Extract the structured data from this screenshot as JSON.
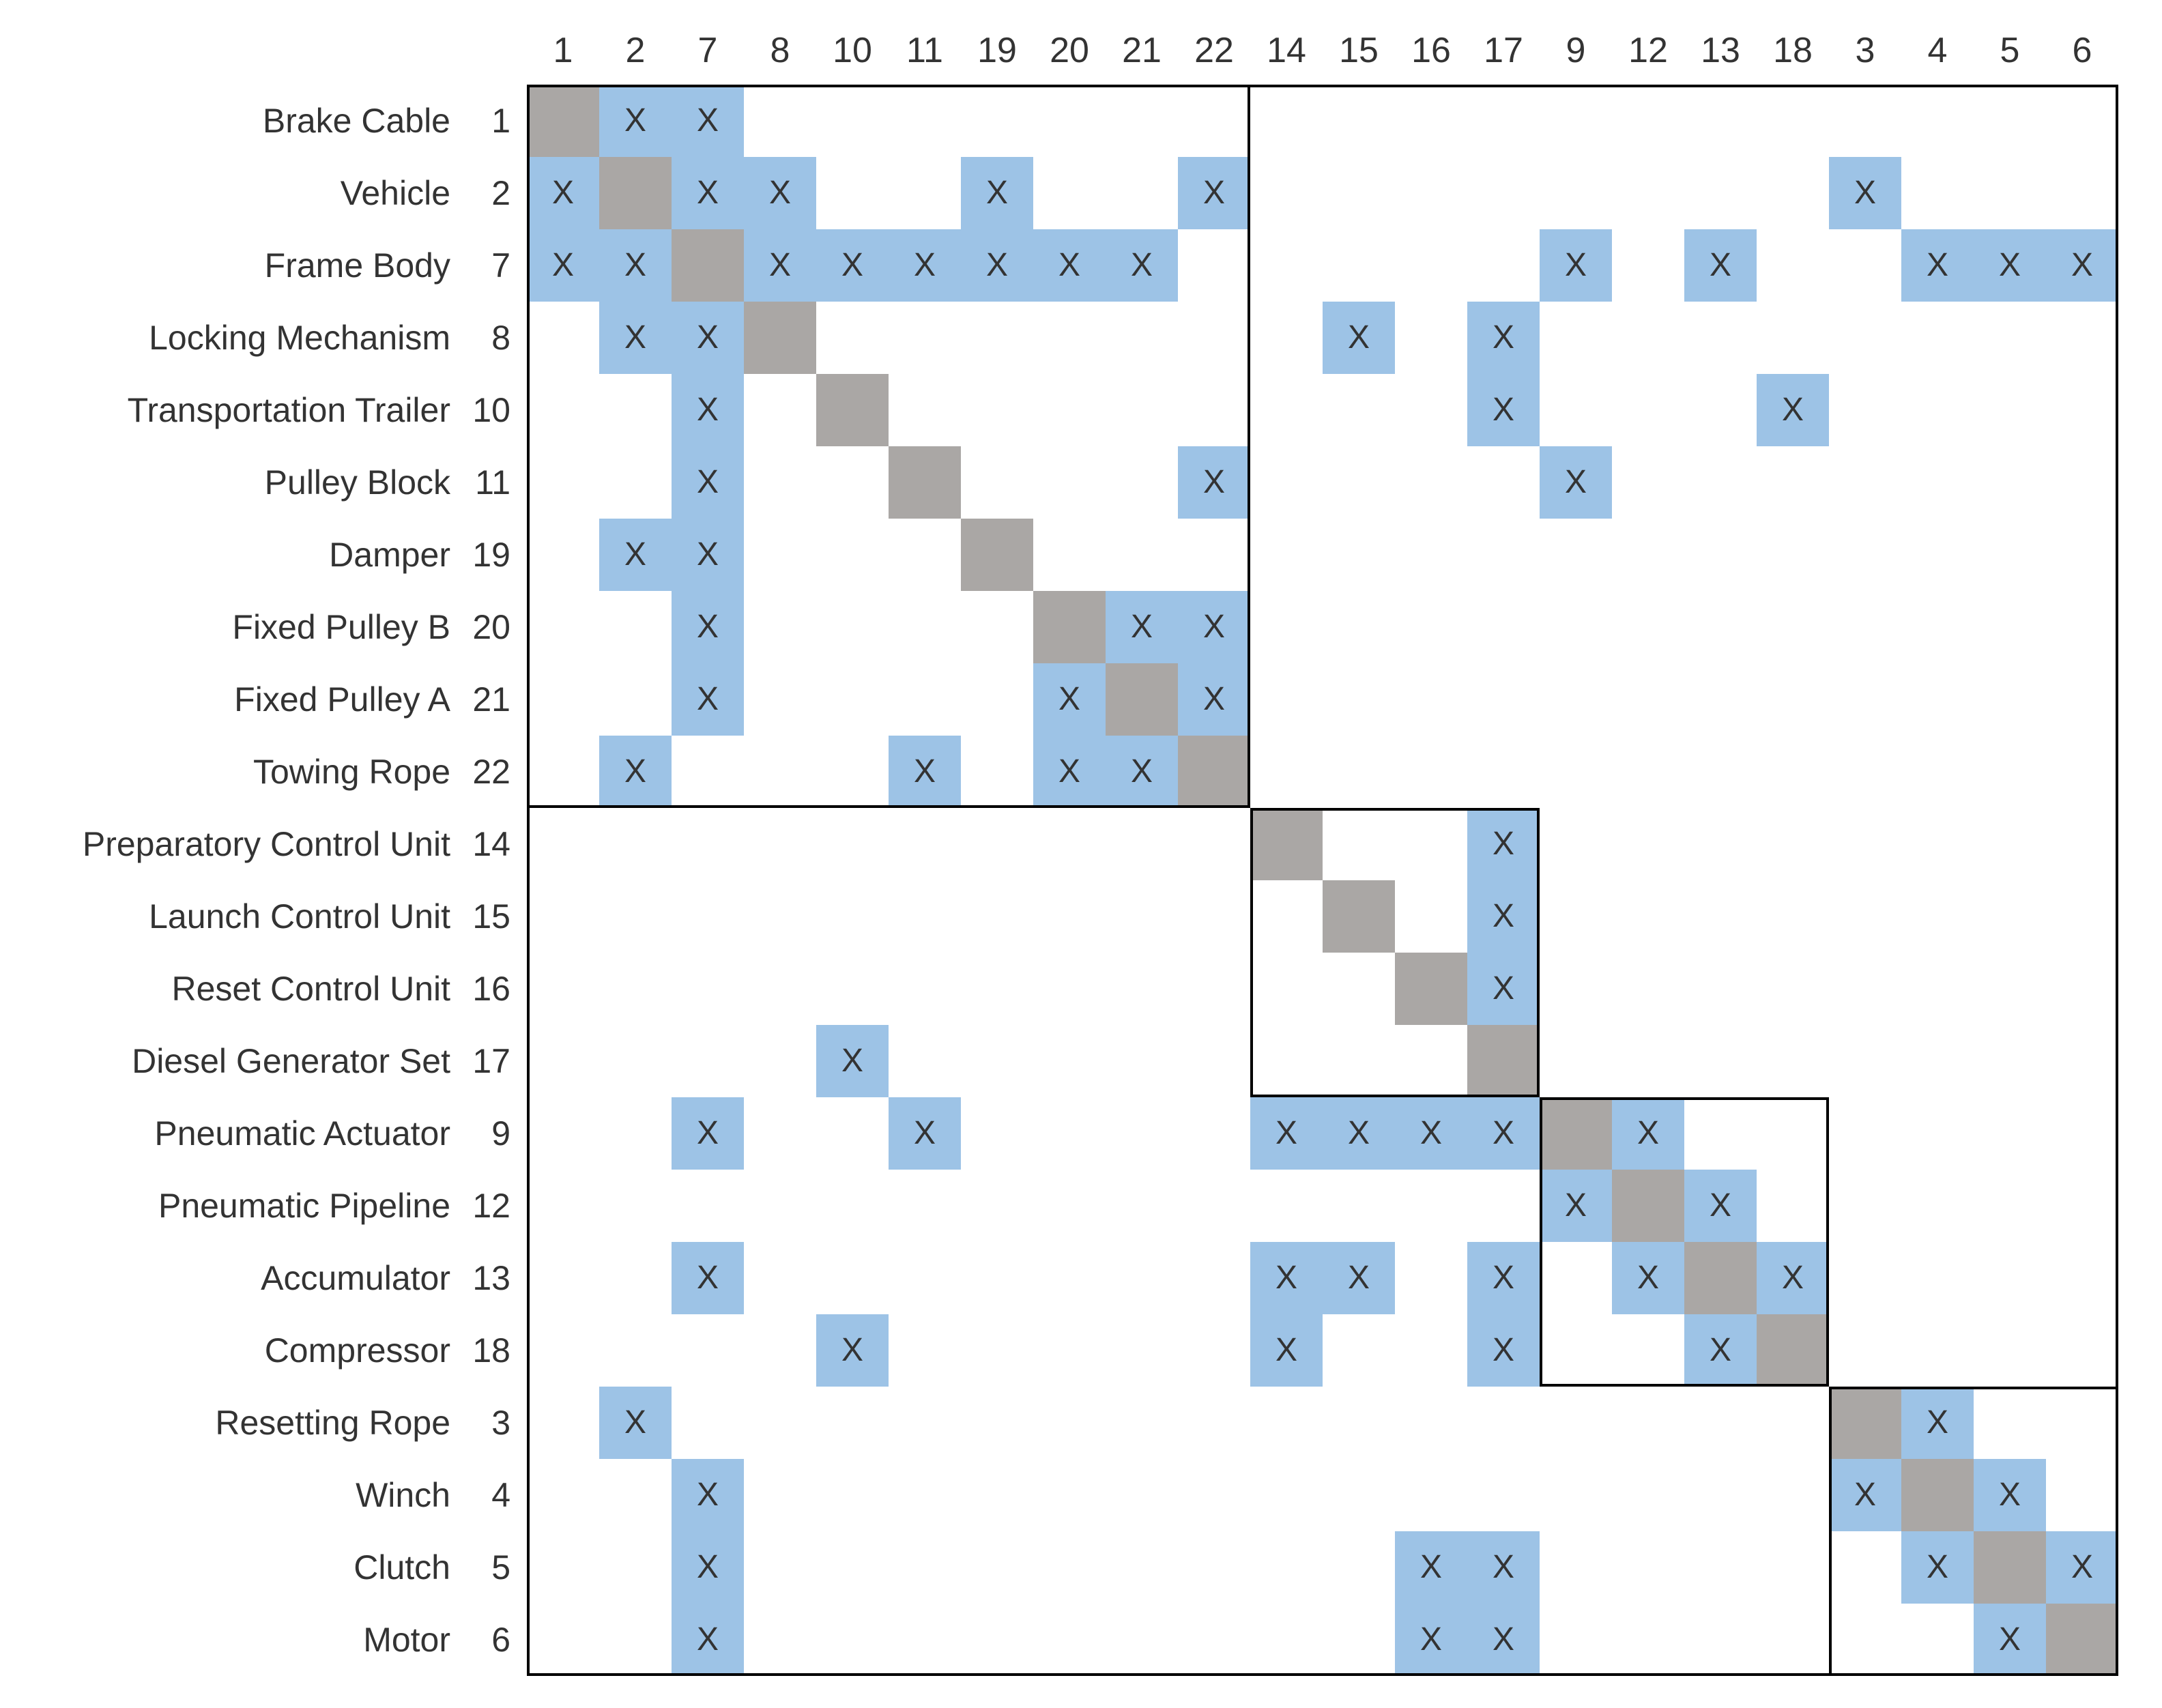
{
  "dsm": {
    "order": [
      1,
      2,
      7,
      8,
      10,
      11,
      19,
      20,
      21,
      22,
      14,
      15,
      16,
      17,
      9,
      12,
      13,
      18,
      3,
      4,
      5,
      6
    ],
    "rows": [
      {
        "name": "Brake Cable",
        "id": 1
      },
      {
        "name": "Vehicle",
        "id": 2
      },
      {
        "name": "Frame Body",
        "id": 7
      },
      {
        "name": "Locking Mechanism",
        "id": 8
      },
      {
        "name": "Transportation Trailer",
        "id": 10
      },
      {
        "name": "Pulley Block",
        "id": 11
      },
      {
        "name": "Damper",
        "id": 19
      },
      {
        "name": "Fixed Pulley B",
        "id": 20
      },
      {
        "name": "Fixed Pulley A",
        "id": 21
      },
      {
        "name": "Towing Rope",
        "id": 22
      },
      {
        "name": "Preparatory Control Unit",
        "id": 14
      },
      {
        "name": "Launch Control Unit",
        "id": 15
      },
      {
        "name": "Reset Control Unit",
        "id": 16
      },
      {
        "name": "Diesel Generator Set",
        "id": 17
      },
      {
        "name": "Pneumatic Actuator",
        "id": 9
      },
      {
        "name": "Pneumatic Pipeline",
        "id": 12
      },
      {
        "name": "Accumulator",
        "id": 13
      },
      {
        "name": "Compressor",
        "id": 18
      },
      {
        "name": "Resetting Rope",
        "id": 3
      },
      {
        "name": "Winch",
        "id": 4
      },
      {
        "name": "Clutch",
        "id": 5
      },
      {
        "name": "Motor",
        "id": 6
      }
    ],
    "mark": "X",
    "dependencies": [
      [
        1,
        2
      ],
      [
        1,
        7
      ],
      [
        2,
        1
      ],
      [
        2,
        7
      ],
      [
        2,
        8
      ],
      [
        2,
        19
      ],
      [
        2,
        22
      ],
      [
        2,
        3
      ],
      [
        7,
        1
      ],
      [
        7,
        2
      ],
      [
        7,
        8
      ],
      [
        7,
        10
      ],
      [
        7,
        11
      ],
      [
        7,
        19
      ],
      [
        7,
        20
      ],
      [
        7,
        21
      ],
      [
        7,
        9
      ],
      [
        7,
        13
      ],
      [
        7,
        4
      ],
      [
        7,
        5
      ],
      [
        7,
        6
      ],
      [
        8,
        2
      ],
      [
        8,
        7
      ],
      [
        8,
        15
      ],
      [
        8,
        17
      ],
      [
        10,
        7
      ],
      [
        10,
        17
      ],
      [
        10,
        18
      ],
      [
        11,
        7
      ],
      [
        11,
        22
      ],
      [
        11,
        9
      ],
      [
        19,
        2
      ],
      [
        19,
        7
      ],
      [
        20,
        7
      ],
      [
        20,
        21
      ],
      [
        20,
        22
      ],
      [
        21,
        7
      ],
      [
        21,
        20
      ],
      [
        21,
        22
      ],
      [
        22,
        2
      ],
      [
        22,
        11
      ],
      [
        22,
        20
      ],
      [
        22,
        21
      ],
      [
        14,
        17
      ],
      [
        15,
        17
      ],
      [
        16,
        17
      ],
      [
        17,
        10
      ],
      [
        9,
        7
      ],
      [
        9,
        11
      ],
      [
        9,
        14
      ],
      [
        9,
        15
      ],
      [
        9,
        16
      ],
      [
        9,
        17
      ],
      [
        9,
        12
      ],
      [
        12,
        9
      ],
      [
        12,
        13
      ],
      [
        13,
        7
      ],
      [
        13,
        14
      ],
      [
        13,
        15
      ],
      [
        13,
        17
      ],
      [
        13,
        12
      ],
      [
        13,
        18
      ],
      [
        18,
        10
      ],
      [
        18,
        14
      ],
      [
        18,
        17
      ],
      [
        18,
        13
      ],
      [
        3,
        2
      ],
      [
        3,
        4
      ],
      [
        4,
        7
      ],
      [
        4,
        3
      ],
      [
        4,
        5
      ],
      [
        5,
        7
      ],
      [
        5,
        16
      ],
      [
        5,
        17
      ],
      [
        5,
        4
      ],
      [
        5,
        6
      ],
      [
        6,
        7
      ],
      [
        6,
        16
      ],
      [
        6,
        17
      ],
      [
        6,
        5
      ]
    ],
    "blocks": [
      {
        "from": 1,
        "to": 22
      },
      {
        "from": 14,
        "to": 17
      },
      {
        "from": 9,
        "to": 18
      },
      {
        "from": 3,
        "to": 6
      }
    ],
    "colors": {
      "dependency": "#9dc3e6",
      "diagonal": "#aaa7a5",
      "border": "#000000",
      "text": "#333333"
    }
  }
}
